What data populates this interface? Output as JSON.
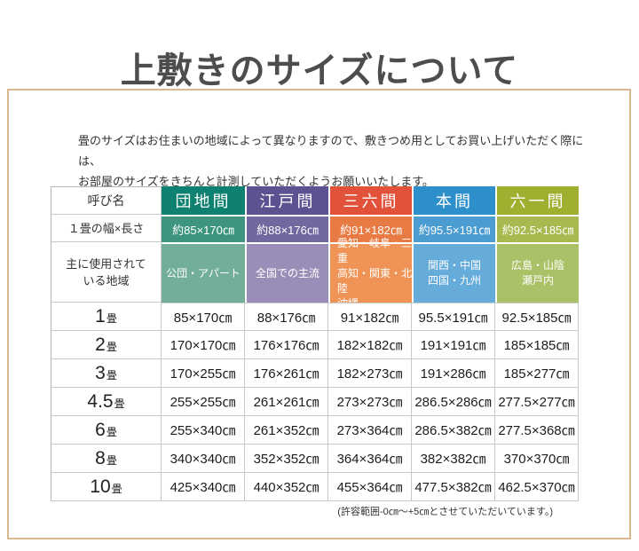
{
  "page": {
    "title": "上敷きのサイズについて",
    "intro_line1": "畳のサイズはお住まいの地域によって異なりますので、敷きつめ用としてお買い上げいただく際には、",
    "intro_line2": "お部屋のサイズをきちんと計測していただくようお願いいたします。",
    "footnote": "(許容範囲-0㎝～+5㎝とさせていただいています。)"
  },
  "colors": {
    "box_border": "#dcb890",
    "title_text": "#4d4d4d",
    "danchima": {
      "header": "#0E8170",
      "size_row": "#3D957F",
      "region_row": "#72AE9A"
    },
    "edoma": {
      "header": "#5B5391",
      "size_row": "#6F69A0",
      "region_row": "#9A8EB8"
    },
    "sanrokuma": {
      "header": "#E2523A",
      "size_row": "#E87B43",
      "region_row": "#EF9456"
    },
    "honma": {
      "header": "#2E90CB",
      "size_row": "#4B9DD1",
      "region_row": "#66ACDB"
    },
    "rokuichima": {
      "header": "#A0AF30",
      "size_row": "#A9B84F",
      "region_row": "#ABC167"
    }
  },
  "table": {
    "corner_header": "呼び名",
    "size_row_label": "１畳の幅×長さ",
    "region_row_label_line1": "主に使用されて",
    "region_row_label_line2": "いる地域",
    "columns": [
      {
        "name": "団地間",
        "size": "約85×170㎝",
        "region_lines": [
          "公団・アパート"
        ]
      },
      {
        "name": "江戸間",
        "size": "約88×176㎝",
        "region_lines": [
          "全国での主流"
        ]
      },
      {
        "name": "三六間",
        "size": "約91×182㎝",
        "region_lines": [
          "愛知・岐阜・三重",
          "高知・関東・北陸",
          "沖縄"
        ]
      },
      {
        "name": "本間",
        "size": "約95.5×191㎝",
        "region_lines": [
          "関西・中国",
          "四国・九州"
        ]
      },
      {
        "name": "六一間",
        "size": "約92.5×185㎝",
        "region_lines": [
          "広島・山陰",
          "瀬戸内"
        ]
      }
    ],
    "rows": [
      {
        "num": "1",
        "unit": "畳",
        "values": [
          "85×170㎝",
          "88×176㎝",
          "91×182㎝",
          "95.5×191㎝",
          "92.5×185㎝"
        ]
      },
      {
        "num": "2",
        "unit": "畳",
        "values": [
          "170×170㎝",
          "176×176㎝",
          "182×182㎝",
          "191×191㎝",
          "185×185㎝"
        ]
      },
      {
        "num": "3",
        "unit": "畳",
        "values": [
          "170×255㎝",
          "176×261㎝",
          "182×273㎝",
          "191×286㎝",
          "185×277㎝"
        ]
      },
      {
        "num": "4.5",
        "unit": "畳",
        "values": [
          "255×255㎝",
          "261×261㎝",
          "273×273㎝",
          "286.5×286㎝",
          "277.5×277㎝"
        ]
      },
      {
        "num": "6",
        "unit": "畳",
        "values": [
          "255×340㎝",
          "261×352㎝",
          "273×364㎝",
          "286.5×382㎝",
          "277.5×368㎝"
        ]
      },
      {
        "num": "8",
        "unit": "畳",
        "values": [
          "340×340㎝",
          "352×352㎝",
          "364×364㎝",
          "382×382㎝",
          "370×370㎝"
        ]
      },
      {
        "num": "10",
        "unit": "畳",
        "values": [
          "425×340㎝",
          "440×352㎝",
          "455×364㎝",
          "477.5×382㎝",
          "462.5×370㎝"
        ]
      }
    ]
  }
}
